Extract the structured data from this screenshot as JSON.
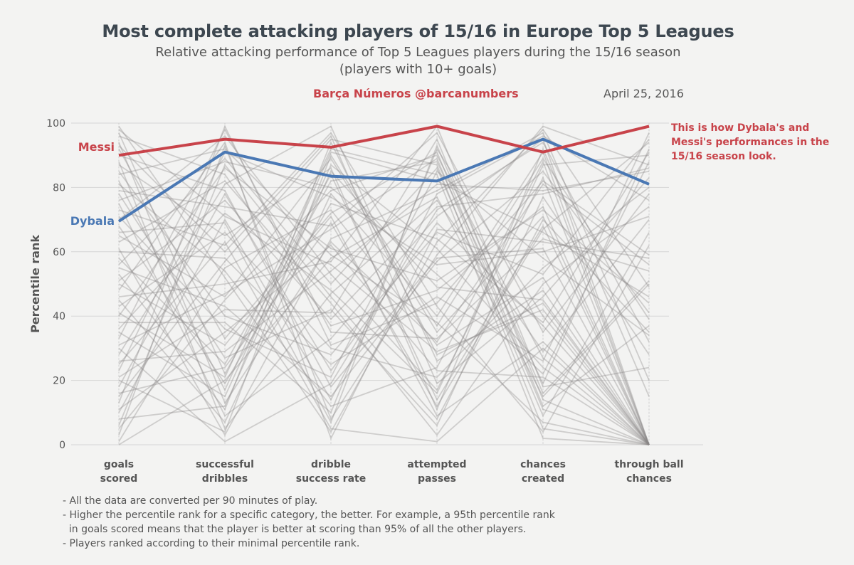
{
  "header": {
    "title": "Most complete attacking players of 15/16 in Europe Top 5 Leagues",
    "subtitle_line1": "Relative attacking performance of Top 5 Leagues players during the 15/16 season",
    "subtitle_line2": "(players with 10+ goals)",
    "credit": "Barça Números @barcanumbers",
    "date": "April 25, 2016"
  },
  "annotation": "This is how Dybala's and Messi's performances in the 15/16 season look.",
  "notes": [
    "- All the data are converted per 90 minutes of play.",
    "- Higher the percentile rank for a specific category, the better. For example, a 95th percentile rank",
    "  in goals scored means that the player is better at scoring than 95% of all the other players.",
    "- Players ranked according to their minimal percentile rank."
  ],
  "colors": {
    "messi": "#c8434a",
    "dybala": "#4a78b4",
    "background_lines": "#8a8688",
    "grid": "#d6d6d6"
  },
  "chart_data": {
    "type": "line",
    "ylabel": "Percentile rank",
    "xlabel": "",
    "ylim": [
      0,
      100
    ],
    "yticks": [
      0,
      20,
      40,
      60,
      80,
      100
    ],
    "categories": [
      [
        "goals",
        "scored"
      ],
      [
        "successful",
        "dribbles"
      ],
      [
        "dribble",
        "success rate"
      ],
      [
        "attempted",
        "passes"
      ],
      [
        "chances",
        "created"
      ],
      [
        "through ball",
        "chances"
      ]
    ],
    "grid": true,
    "highlighted_series": [
      {
        "name": "Messi",
        "color": "#c8434a",
        "values": [
          90,
          95,
          92.5,
          99,
          91,
          99
        ]
      },
      {
        "name": "Dybala",
        "color": "#4a78b4",
        "values": [
          69.5,
          91,
          83.5,
          82,
          95,
          81
        ]
      }
    ],
    "background_series": [
      [
        99,
        52,
        4,
        63,
        98,
        49
      ],
      [
        98,
        71,
        56,
        29,
        42,
        0
      ],
      [
        97,
        22,
        82,
        88,
        19,
        92
      ],
      [
        96,
        84,
        37,
        48,
        74,
        0
      ],
      [
        94,
        13,
        63,
        32,
        81,
        56
      ],
      [
        93,
        60,
        96,
        19,
        46,
        83
      ],
      [
        92,
        33,
        72,
        91,
        12,
        37
      ],
      [
        90,
        79,
        18,
        58,
        61,
        0
      ],
      [
        88,
        5,
        47,
        76,
        29,
        70
      ],
      [
        87,
        65,
        86,
        11,
        92,
        15
      ],
      [
        85,
        40,
        28,
        66,
        53,
        95
      ],
      [
        84,
        92,
        59,
        38,
        7,
        0
      ],
      [
        82,
        17,
        91,
        82,
        66,
        46
      ],
      [
        81,
        54,
        12,
        24,
        88,
        0
      ],
      [
        79,
        74,
        68,
        97,
        35,
        78
      ],
      [
        78,
        27,
        42,
        6,
        77,
        28
      ],
      [
        76,
        88,
        80,
        53,
        22,
        88
      ],
      [
        75,
        9,
        33,
        71,
        95,
        0
      ],
      [
        73,
        62,
        97,
        43,
        4,
        62
      ],
      [
        71,
        36,
        21,
        85,
        58,
        34
      ],
      [
        70,
        96,
        53,
        17,
        83,
        0
      ],
      [
        68,
        19,
        75,
        64,
        38,
        91
      ],
      [
        66,
        69,
        7,
        93,
        16,
        51
      ],
      [
        65,
        46,
        89,
        35,
        71,
        0
      ],
      [
        63,
        82,
        44,
        3,
        50,
        74
      ],
      [
        61,
        3,
        64,
        79,
        97,
        20
      ],
      [
        60,
        58,
        25,
        46,
        26,
        97
      ],
      [
        58,
        25,
        84,
        14,
        68,
        0
      ],
      [
        56,
        89,
        50,
        86,
        9,
        66
      ],
      [
        55,
        43,
        15,
        57,
        85,
        41
      ],
      [
        53,
        11,
        94,
        28,
        44,
        0
      ],
      [
        51,
        76,
        39,
        74,
        78,
        86
      ],
      [
        50,
        31,
        71,
        9,
        32,
        0
      ],
      [
        48,
        94,
        2,
        67,
        63,
        58
      ],
      [
        46,
        50,
        57,
        99,
        18,
        24
      ],
      [
        45,
        7,
        78,
        40,
        91,
        0
      ],
      [
        43,
        66,
        30,
        21,
        55,
        80
      ],
      [
        41,
        21,
        92,
        84,
        2,
        0
      ],
      [
        40,
        86,
        61,
        51,
        73,
        44
      ],
      [
        38,
        38,
        10,
        92,
        40,
        0
      ],
      [
        36,
        72,
        48,
        16,
        87,
        90
      ],
      [
        35,
        15,
        87,
        61,
        24,
        0
      ],
      [
        33,
        98,
        35,
        33,
        64,
        54
      ],
      [
        31,
        47,
        67,
        89,
        11,
        0
      ],
      [
        30,
        1,
        19,
        73,
        94,
        32
      ],
      [
        28,
        81,
        99,
        26,
        48,
        0
      ],
      [
        26,
        29,
        54,
        81,
        79,
        85
      ],
      [
        25,
        63,
        5,
        1,
        30,
        0
      ],
      [
        23,
        91,
        77,
        56,
        60,
        71
      ],
      [
        21,
        42,
        41,
        95,
        14,
        0
      ],
      [
        20,
        4,
        90,
        37,
        89,
        39
      ],
      [
        18,
        78,
        23,
        69,
        37,
        0
      ],
      [
        16,
        24,
        69,
        12,
        67,
        94
      ],
      [
        15,
        57,
        95,
        87,
        5,
        0
      ],
      [
        13,
        99,
        31,
        44,
        82,
        59
      ],
      [
        11,
        35,
        62,
        23,
        21,
        0
      ],
      [
        10,
        70,
        14,
        78,
        96,
        76
      ],
      [
        8,
        12,
        85,
        49,
        45,
        0
      ],
      [
        6,
        87,
        46,
        8,
        70,
        35
      ],
      [
        5,
        45,
        79,
        90,
        27,
        0
      ],
      [
        3,
        93,
        8,
        59,
        99,
        87
      ],
      [
        1,
        55,
        73,
        31,
        52,
        0
      ],
      [
        0,
        20,
        58,
        77,
        15,
        50
      ]
    ]
  }
}
